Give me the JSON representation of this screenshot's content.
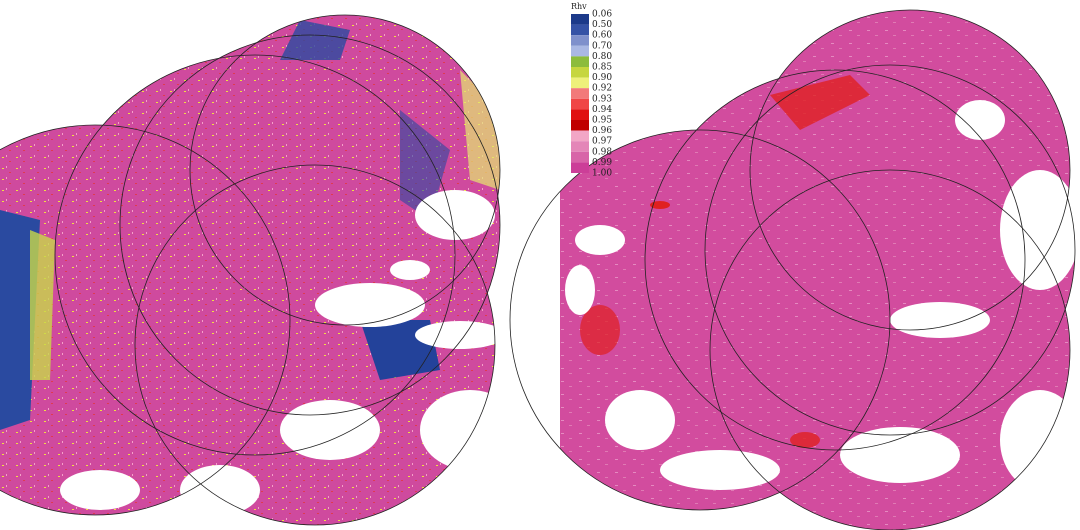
{
  "legend": {
    "title": "Rhv",
    "labels": [
      "0.06",
      "0.50",
      "0.60",
      "0.70",
      "0.80",
      "0.85",
      "0.90",
      "0.92",
      "0.93",
      "0.94",
      "0.95",
      "0.96",
      "0.97",
      "0.98",
      "0.99",
      "1.00"
    ],
    "colors": [
      "#1c3a8a",
      "#3552a6",
      "#7f90cc",
      "#aab8e4",
      "#8cbc3c",
      "#c6d63e",
      "#eef07a",
      "#f27a7a",
      "#f04646",
      "#e01010",
      "#c00000",
      "#f2a6c6",
      "#e486b8",
      "#d864a8",
      "#cc3e98"
    ]
  }
}
